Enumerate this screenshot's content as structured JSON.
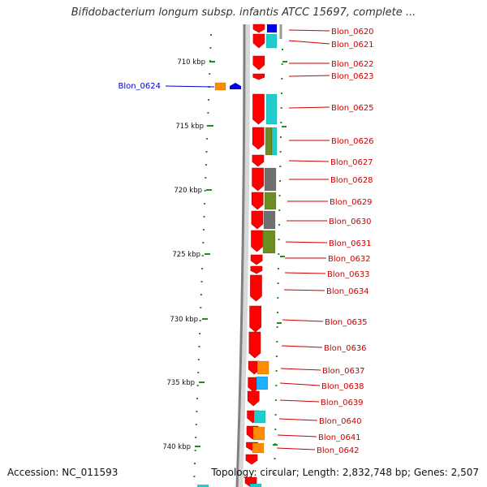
{
  "title": "Bifidobacterium longum subsp. infantis ATCC 15697, complete ...",
  "footer": {
    "accession": "Accession: NC_011593",
    "summary": "Topology: circular; Length: 2,832,748 bp; Genes: 2,507"
  },
  "colors": {
    "backbone": "#808080",
    "strand_arrow": "#ff0000",
    "cyan": "#22cccc",
    "olive": "#6b8e23",
    "gray": "#707070",
    "orange": "#ff8c00",
    "skyblue": "#1fb0ff",
    "blue": "#0000ee",
    "tick": "#228b22",
    "label_red": "#cc0000",
    "label_blue": "#0000cc"
  },
  "scale": {
    "unit": "kbp",
    "ticks": [
      {
        "label": "710 kbp",
        "kbp": 710
      },
      {
        "label": "715 kbp",
        "kbp": 715
      },
      {
        "label": "720 kbp",
        "kbp": 720
      },
      {
        "label": "725 kbp",
        "kbp": 725
      },
      {
        "label": "730 kbp",
        "kbp": 730
      },
      {
        "label": "735 kbp",
        "kbp": 735
      },
      {
        "label": "740 kbp",
        "kbp": 740
      }
    ]
  },
  "genes": [
    {
      "name": "Blon_0620",
      "color_key": "label_red"
    },
    {
      "name": "Blon_0621",
      "color_key": "label_red"
    },
    {
      "name": "Blon_0622",
      "color_key": "label_red"
    },
    {
      "name": "Blon_0623",
      "color_key": "label_red"
    },
    {
      "name": "Blon_0624",
      "color_key": "label_blue"
    },
    {
      "name": "Blon_0625",
      "color_key": "label_red"
    },
    {
      "name": "Blon_0626",
      "color_key": "label_red"
    },
    {
      "name": "Blon_0627",
      "color_key": "label_red"
    },
    {
      "name": "Blon_0628",
      "color_key": "label_red"
    },
    {
      "name": "Blon_0629",
      "color_key": "label_red"
    },
    {
      "name": "Blon_0630",
      "color_key": "label_red"
    },
    {
      "name": "Blon_0631",
      "color_key": "label_red"
    },
    {
      "name": "Blon_0632",
      "color_key": "label_red"
    },
    {
      "name": "Blon_0633",
      "color_key": "label_red"
    },
    {
      "name": "Blon_0634",
      "color_key": "label_red"
    },
    {
      "name": "Blon_0635",
      "color_key": "label_red"
    },
    {
      "name": "Blon_0636",
      "color_key": "label_red"
    },
    {
      "name": "Blon_0637",
      "color_key": "label_red"
    },
    {
      "name": "Blon_0638",
      "color_key": "label_red"
    },
    {
      "name": "Blon_0639",
      "color_key": "label_red"
    },
    {
      "name": "Blon_0640",
      "color_key": "label_red"
    },
    {
      "name": "Blon_0641",
      "color_key": "label_red"
    },
    {
      "name": "Blon_0642",
      "color_key": "label_red"
    }
  ]
}
